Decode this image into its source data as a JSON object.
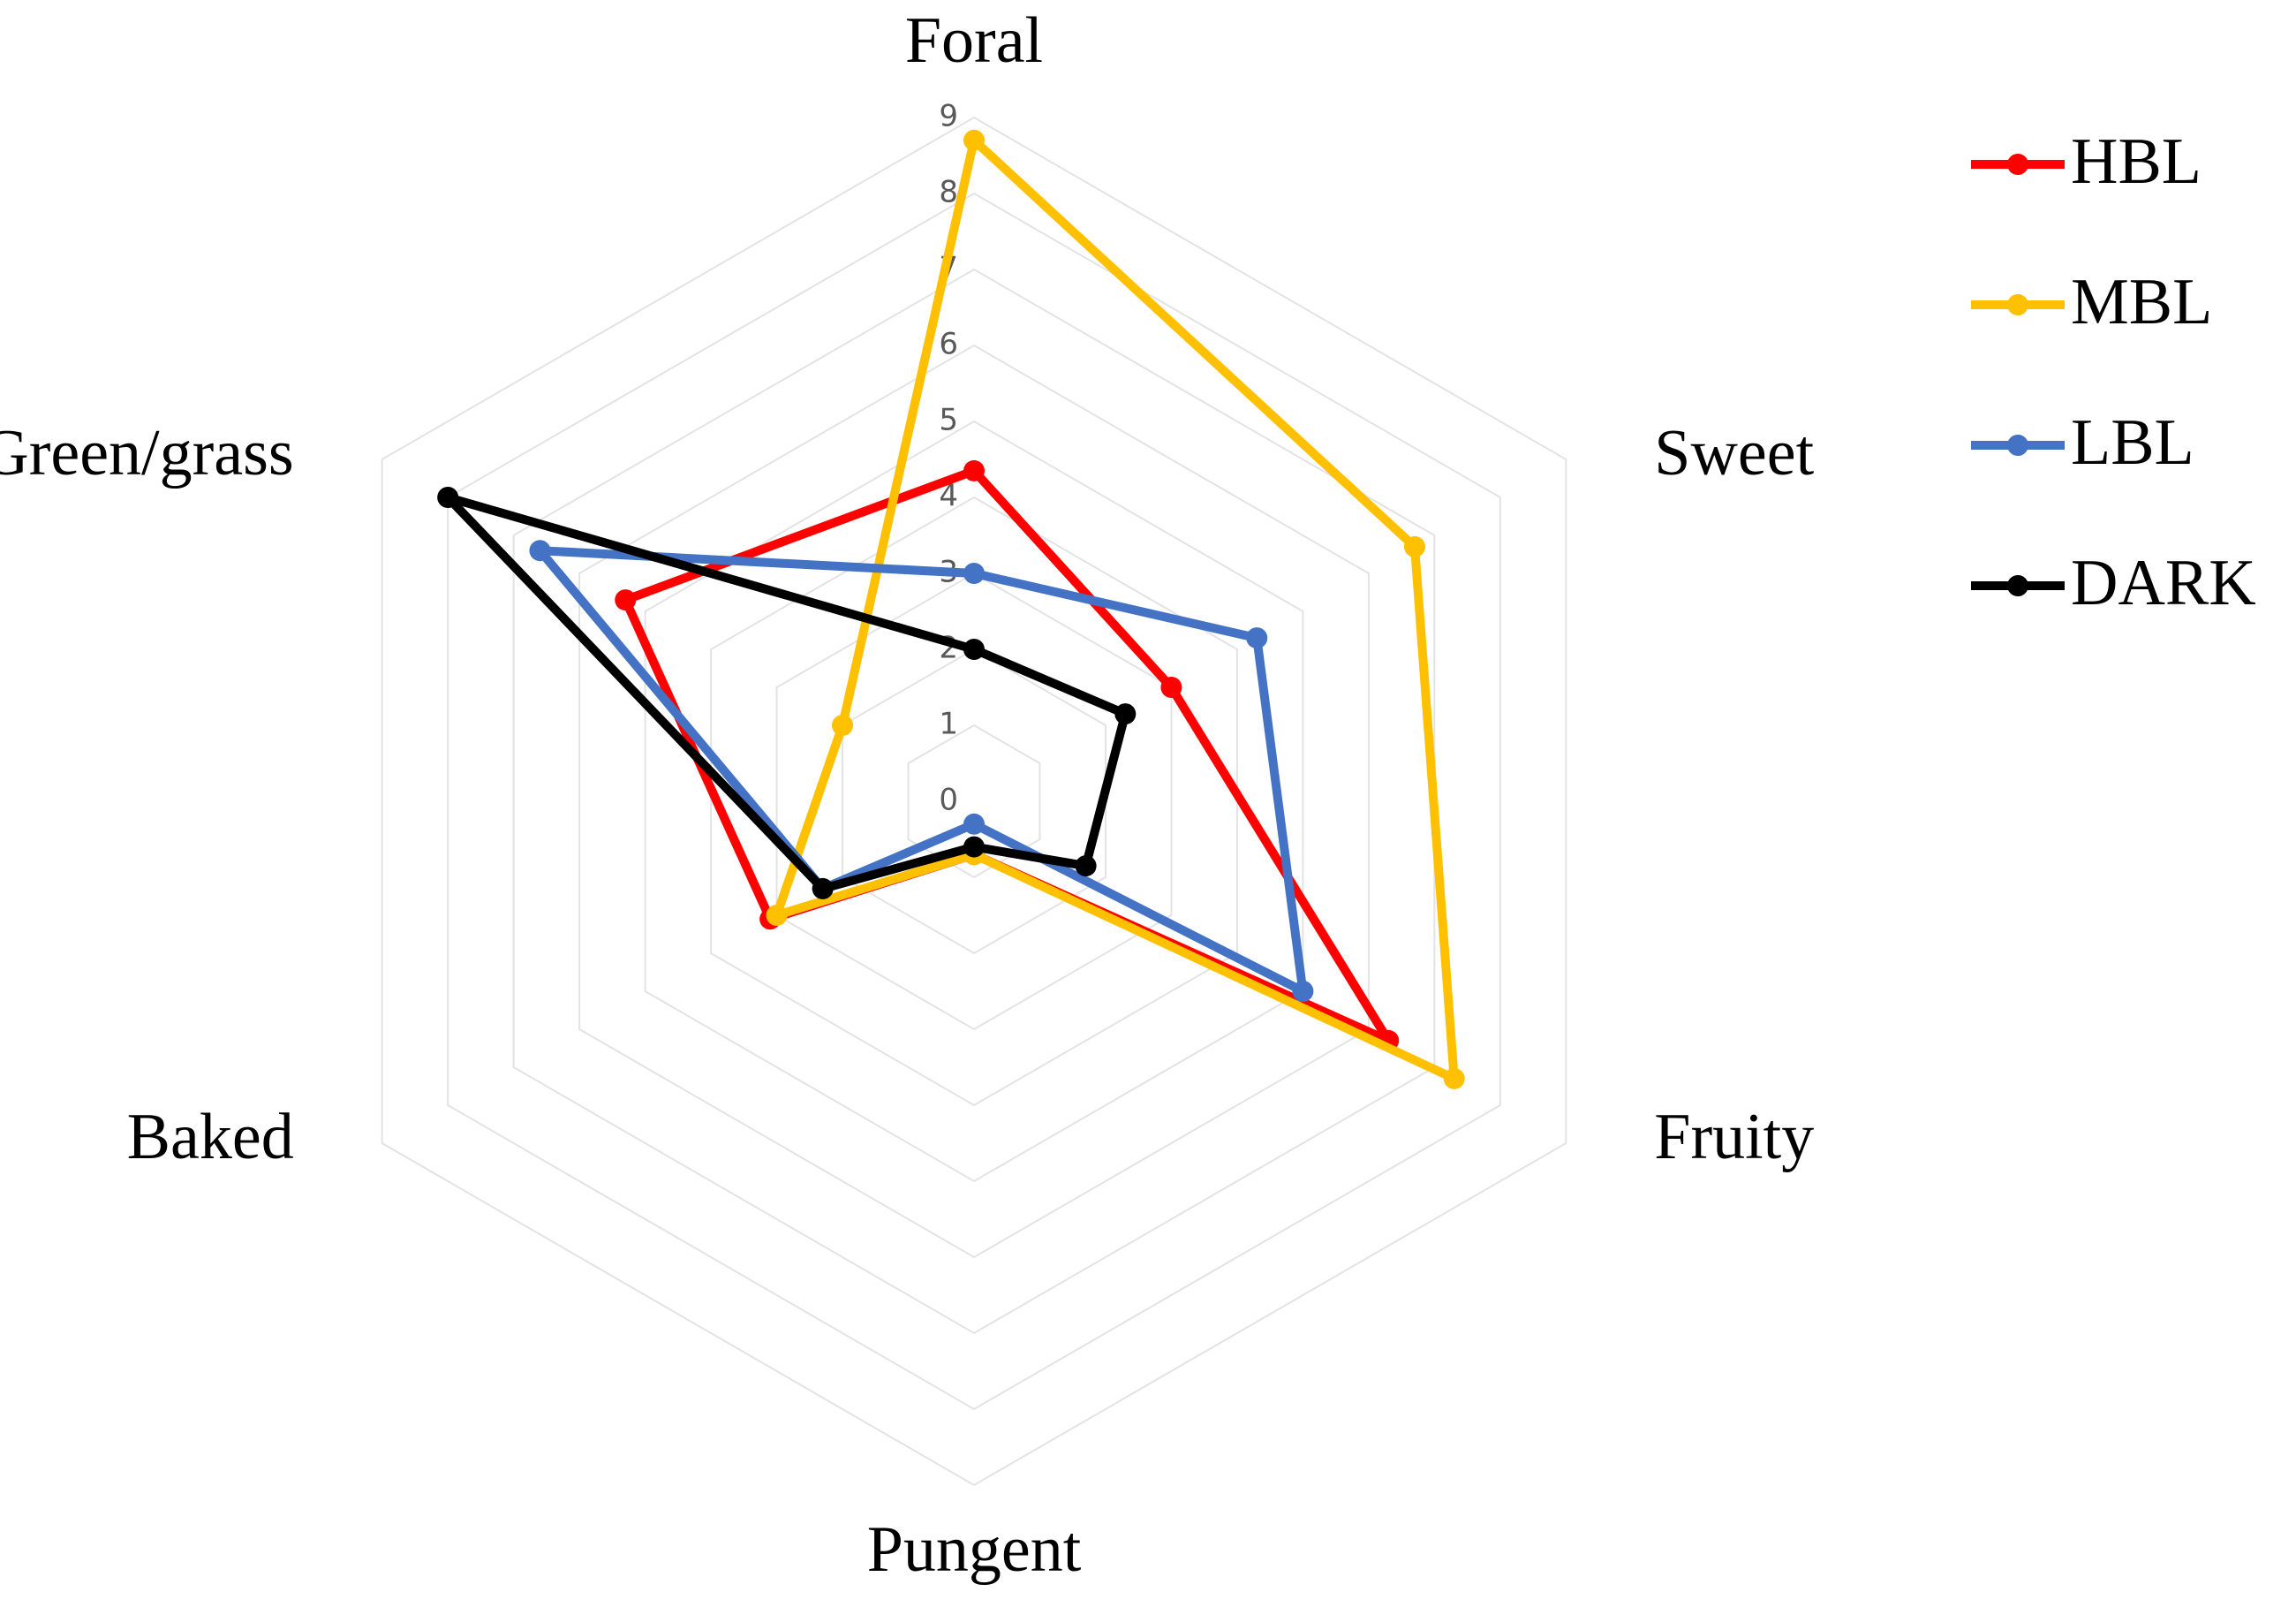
{
  "chart_data": {
    "type": "radar",
    "categories": [
      "Foral",
      "Sweet",
      "Fruity",
      "Pungent",
      "Baked",
      "Green/grass"
    ],
    "series": [
      {
        "name": "HBL",
        "color": "#ff0000",
        "values": [
          4.35,
          3.0,
          6.3,
          0.7,
          3.1,
          5.3
        ]
      },
      {
        "name": "MBL",
        "color": "#ffc000",
        "values": [
          8.7,
          6.7,
          7.3,
          0.7,
          3.0,
          2.0
        ]
      },
      {
        "name": "LBL",
        "color": "#4472c4",
        "values": [
          3.0,
          4.3,
          5.0,
          0.3,
          2.3,
          6.6
        ]
      },
      {
        "name": "DARK",
        "color": "#000000",
        "values": [
          2.0,
          2.3,
          1.7,
          0.6,
          2.3,
          8.0
        ]
      }
    ],
    "ylim": [
      0,
      9
    ],
    "yticks": [
      0,
      1,
      2,
      3,
      4,
      5,
      6,
      7,
      8,
      9
    ],
    "grid": true,
    "legend": "right"
  }
}
